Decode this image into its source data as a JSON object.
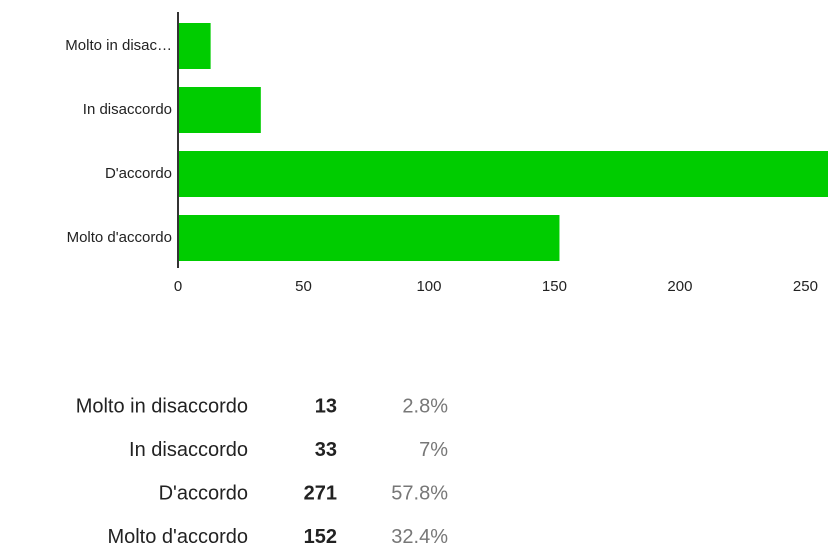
{
  "chart_data": {
    "type": "hbar",
    "categories": [
      "Molto in disac…",
      "In disaccordo",
      "D'accordo",
      "Molto d'accordo"
    ],
    "values": [
      13,
      33,
      271,
      152
    ],
    "color": "#00cc00",
    "xlim": [
      0,
      259
    ],
    "xticks": [
      0,
      50,
      100,
      150,
      200,
      250
    ]
  },
  "table": {
    "rows": [
      [
        "Molto in disaccordo",
        "13",
        "2.8%"
      ],
      [
        "In disaccordo",
        "33",
        "7%"
      ],
      [
        "D'accordo",
        "271",
        "57.8%"
      ],
      [
        "Molto d'accordo",
        "152",
        "32.4%"
      ]
    ]
  }
}
